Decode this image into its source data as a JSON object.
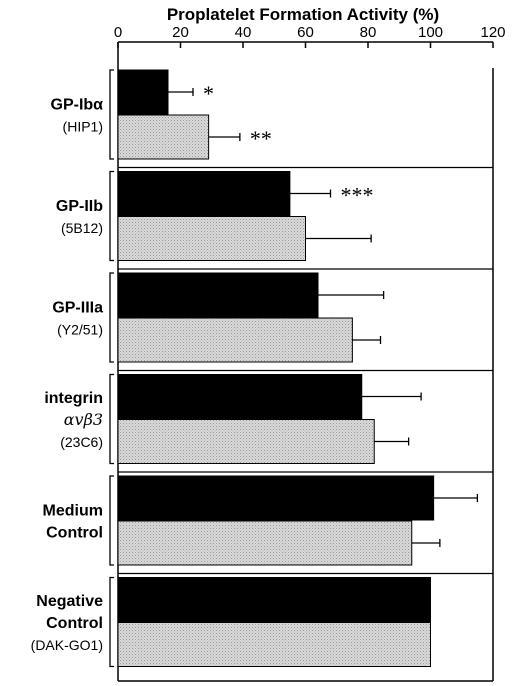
{
  "chart_data": {
    "type": "bar",
    "orientation": "horizontal",
    "title": "Proplatelet Formation Activity (%)",
    "xlim": [
      0,
      120
    ],
    "x_ticks": [
      0,
      20,
      40,
      60,
      80,
      100,
      120
    ],
    "legend": "none",
    "grid": false,
    "series_colors": {
      "black_bar": "#000000",
      "gray_bar": "#d4d4d4"
    },
    "groups": [
      {
        "label_lines": [
          "GP-Ibα",
          "(HIP1)"
        ],
        "bars": [
          {
            "series": "black",
            "value": 16,
            "error": 8,
            "sig": "*"
          },
          {
            "series": "gray",
            "value": 29,
            "error": 10,
            "sig": "**"
          }
        ]
      },
      {
        "label_lines": [
          "GP-IIb",
          "(5B12)"
        ],
        "bars": [
          {
            "series": "black",
            "value": 55,
            "error": 13,
            "sig": "***"
          },
          {
            "series": "gray",
            "value": 60,
            "error": 21,
            "sig": ""
          }
        ]
      },
      {
        "label_lines": [
          "GP-IIIa",
          "(Y2/51)"
        ],
        "bars": [
          {
            "series": "black",
            "value": 64,
            "error": 21,
            "sig": ""
          },
          {
            "series": "gray",
            "value": 75,
            "error": 9,
            "sig": ""
          }
        ]
      },
      {
        "label_lines": [
          "integrin",
          "αvβ3",
          "(23C6)"
        ],
        "bars": [
          {
            "series": "black",
            "value": 78,
            "error": 19,
            "sig": ""
          },
          {
            "series": "gray",
            "value": 82,
            "error": 11,
            "sig": ""
          }
        ]
      },
      {
        "label_lines": [
          "Medium",
          "Control"
        ],
        "bars": [
          {
            "series": "black",
            "value": 101,
            "error": 14,
            "sig": ""
          },
          {
            "series": "gray",
            "value": 94,
            "error": 9,
            "sig": ""
          }
        ]
      },
      {
        "label_lines": [
          "Negative",
          "Control",
          "(DAK-GO1)"
        ],
        "bars": [
          {
            "series": "black",
            "value": 100,
            "error": 0,
            "sig": ""
          },
          {
            "series": "gray",
            "value": 100,
            "error": 0,
            "sig": ""
          }
        ]
      }
    ]
  }
}
